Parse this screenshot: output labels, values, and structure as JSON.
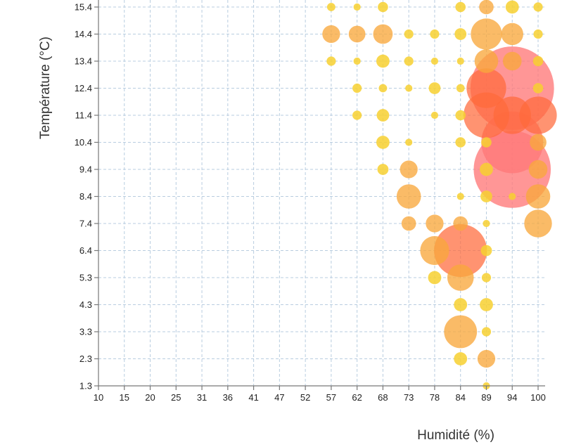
{
  "chart_data": {
    "type": "scatter",
    "subtype": "bubble",
    "title": "",
    "xlabel": "Humidité (%)",
    "ylabel": "Température (°C)",
    "x_ticks": [
      "10",
      "15",
      "20",
      "25",
      "31",
      "36",
      "41",
      "47",
      "52",
      "57",
      "62",
      "68",
      "73",
      "78",
      "84",
      "89",
      "94",
      "100"
    ],
    "y_ticks": [
      "1.3",
      "2.3",
      "3.3",
      "4.3",
      "5.3",
      "6.4",
      "7.4",
      "8.4",
      "9.4",
      "10.4",
      "11.4",
      "12.4",
      "13.4",
      "14.4",
      "15.4"
    ],
    "xlim": [
      10,
      100
    ],
    "ylim": [
      1.3,
      15.4
    ],
    "grid": true,
    "legend": "none",
    "colors": {
      "small": "#f7d030",
      "medium": "#f8a83c",
      "large": "#ff6a3a",
      "xlarge": "#ff7878"
    },
    "points_note": "x/y given as tick indices of the categorical grid; size is relative bubble size (count)",
    "points": [
      {
        "x": "57",
        "y": "15.4",
        "size": 2
      },
      {
        "x": "62",
        "y": "15.4",
        "size": 1.5
      },
      {
        "x": "68",
        "y": "15.4",
        "size": 3
      },
      {
        "x": "84",
        "y": "15.4",
        "size": 3
      },
      {
        "x": "89",
        "y": "15.4",
        "size": 6
      },
      {
        "x": "94",
        "y": "15.4",
        "size": 5
      },
      {
        "x": "100",
        "y": "15.4",
        "size": 2.5
      },
      {
        "x": "57",
        "y": "14.4",
        "size": 9
      },
      {
        "x": "62",
        "y": "14.4",
        "size": 8
      },
      {
        "x": "68",
        "y": "14.4",
        "size": 11
      },
      {
        "x": "73",
        "y": "14.4",
        "size": 2.5
      },
      {
        "x": "78",
        "y": "14.4",
        "size": 2.5
      },
      {
        "x": "84",
        "y": "14.4",
        "size": 4
      },
      {
        "x": "89",
        "y": "14.4",
        "size": 28
      },
      {
        "x": "94",
        "y": "14.4",
        "size": 14
      },
      {
        "x": "100",
        "y": "14.4",
        "size": 2.5
      },
      {
        "x": "57",
        "y": "13.4",
        "size": 2.5
      },
      {
        "x": "62",
        "y": "13.4",
        "size": 1.5
      },
      {
        "x": "68",
        "y": "13.4",
        "size": 5
      },
      {
        "x": "73",
        "y": "13.4",
        "size": 2.5
      },
      {
        "x": "78",
        "y": "13.4",
        "size": 1.5
      },
      {
        "x": "84",
        "y": "13.4",
        "size": 1.5
      },
      {
        "x": "89",
        "y": "13.4",
        "size": 16
      },
      {
        "x": "94",
        "y": "13.4",
        "size": 10
      },
      {
        "x": "100",
        "y": "13.4",
        "size": 3
      },
      {
        "x": "62",
        "y": "12.4",
        "size": 2.5
      },
      {
        "x": "68",
        "y": "12.4",
        "size": 2
      },
      {
        "x": "73",
        "y": "12.4",
        "size": 1.5
      },
      {
        "x": "78",
        "y": "12.4",
        "size": 4
      },
      {
        "x": "84",
        "y": "12.4",
        "size": 2
      },
      {
        "x": "89",
        "y": "12.4",
        "size": 45
      },
      {
        "x": "94",
        "y": "12.4",
        "size": 200
      },
      {
        "x": "100",
        "y": "12.4",
        "size": 3
      },
      {
        "x": "62",
        "y": "11.4",
        "size": 2.5
      },
      {
        "x": "68",
        "y": "11.4",
        "size": 4.5
      },
      {
        "x": "78",
        "y": "11.4",
        "size": 1.5
      },
      {
        "x": "84",
        "y": "11.4",
        "size": 3
      },
      {
        "x": "89",
        "y": "11.4",
        "size": 60
      },
      {
        "x": "94",
        "y": "11.4",
        "size": 40
      },
      {
        "x": "100",
        "y": "11.4",
        "size": 40
      },
      {
        "x": "68",
        "y": "10.4",
        "size": 5
      },
      {
        "x": "73",
        "y": "10.4",
        "size": 1.5
      },
      {
        "x": "84",
        "y": "10.4",
        "size": 3
      },
      {
        "x": "89",
        "y": "10.4",
        "size": 3
      },
      {
        "x": "94",
        "y": "10.4",
        "size": 110
      },
      {
        "x": "100",
        "y": "10.4",
        "size": 8
      },
      {
        "x": "68",
        "y": "9.4",
        "size": 3.5
      },
      {
        "x": "73",
        "y": "9.4",
        "size": 9
      },
      {
        "x": "89",
        "y": "9.4",
        "size": 5
      },
      {
        "x": "94",
        "y": "9.4",
        "size": 170
      },
      {
        "x": "100",
        "y": "9.4",
        "size": 10
      },
      {
        "x": "73",
        "y": "8.4",
        "size": 17
      },
      {
        "x": "84",
        "y": "8.4",
        "size": 1.5
      },
      {
        "x": "89",
        "y": "8.4",
        "size": 4
      },
      {
        "x": "94",
        "y": "8.4",
        "size": 1.5
      },
      {
        "x": "100",
        "y": "8.4",
        "size": 17
      },
      {
        "x": "73",
        "y": "7.4",
        "size": 6
      },
      {
        "x": "78",
        "y": "7.4",
        "size": 9
      },
      {
        "x": "84",
        "y": "7.4",
        "size": 6
      },
      {
        "x": "89",
        "y": "7.4",
        "size": 1.5
      },
      {
        "x": "100",
        "y": "7.4",
        "size": 22
      },
      {
        "x": "78",
        "y": "6.4",
        "size": 24
      },
      {
        "x": "84",
        "y": "6.4",
        "size": 80
      },
      {
        "x": "89",
        "y": "6.4",
        "size": 3.5
      },
      {
        "x": "78",
        "y": "5.3",
        "size": 5
      },
      {
        "x": "84",
        "y": "5.3",
        "size": 20
      },
      {
        "x": "89",
        "y": "5.3",
        "size": 2.5
      },
      {
        "x": "84",
        "y": "4.3",
        "size": 5
      },
      {
        "x": "89",
        "y": "4.3",
        "size": 5
      },
      {
        "x": "84",
        "y": "3.3",
        "size": 31
      },
      {
        "x": "89",
        "y": "3.3",
        "size": 2.5
      },
      {
        "x": "84",
        "y": "2.3",
        "size": 5
      },
      {
        "x": "89",
        "y": "2.3",
        "size": 9
      },
      {
        "x": "89",
        "y": "1.3",
        "size": 1.5
      }
    ]
  }
}
